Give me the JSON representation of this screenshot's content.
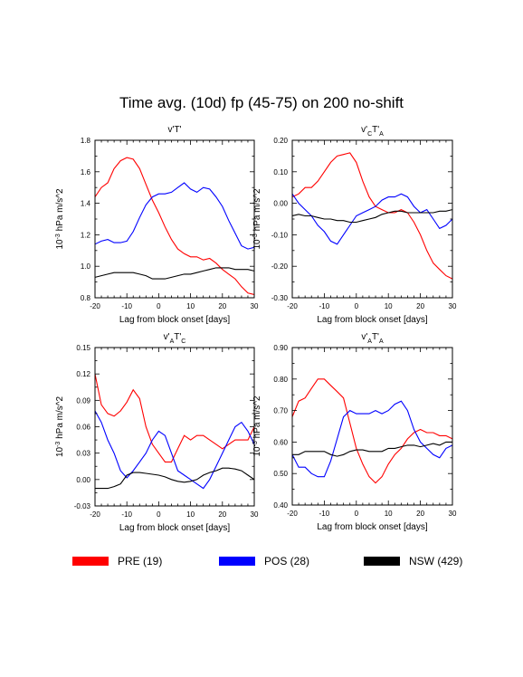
{
  "page": {
    "title": "Time avg. (10d) fp (45-75) on 200 no-shift"
  },
  "colors": {
    "PRE": "#ff0000",
    "POS": "#0000ff",
    "NSW": "#000000"
  },
  "legend": [
    {
      "key": "PRE",
      "label": "PRE (19)"
    },
    {
      "key": "POS",
      "label": "POS (28)"
    },
    {
      "key": "NSW",
      "label": "NSW (429)"
    }
  ],
  "chart_data": [
    {
      "type": "line",
      "title": "v'T'",
      "xlabel": "Lag from block onset [days]",
      "ylabel": "10^-3 hPa m/s^2",
      "xlim": [
        -20,
        30
      ],
      "ylim": [
        0.8,
        1.8
      ],
      "xticks": [
        -20,
        -10,
        0,
        10,
        20,
        30
      ],
      "yticks": [
        0.8,
        1.0,
        1.2,
        1.4,
        1.6,
        1.8
      ],
      "ytick_labels": [
        "0.8",
        "1.0",
        "1.2",
        "1.4",
        "1.6",
        "1.8"
      ],
      "x": [
        -20,
        -18,
        -16,
        -14,
        -12,
        -10,
        -8,
        -6,
        -4,
        -2,
        0,
        2,
        4,
        6,
        8,
        10,
        12,
        14,
        16,
        18,
        20,
        22,
        24,
        26,
        28,
        30
      ],
      "series": [
        {
          "name": "PRE",
          "values": [
            1.44,
            1.5,
            1.53,
            1.62,
            1.67,
            1.69,
            1.68,
            1.62,
            1.52,
            1.42,
            1.34,
            1.25,
            1.17,
            1.11,
            1.08,
            1.06,
            1.06,
            1.04,
            1.05,
            1.02,
            0.98,
            0.95,
            0.92,
            0.87,
            0.83,
            0.82
          ]
        },
        {
          "name": "POS",
          "values": [
            1.14,
            1.16,
            1.17,
            1.15,
            1.15,
            1.16,
            1.22,
            1.31,
            1.39,
            1.44,
            1.46,
            1.46,
            1.47,
            1.5,
            1.53,
            1.49,
            1.47,
            1.5,
            1.49,
            1.44,
            1.38,
            1.29,
            1.21,
            1.13,
            1.11,
            1.12
          ]
        },
        {
          "name": "NSW",
          "values": [
            0.93,
            0.94,
            0.95,
            0.96,
            0.96,
            0.96,
            0.96,
            0.95,
            0.94,
            0.92,
            0.92,
            0.92,
            0.93,
            0.94,
            0.95,
            0.95,
            0.96,
            0.97,
            0.98,
            0.99,
            0.99,
            0.99,
            0.98,
            0.98,
            0.98,
            0.97
          ]
        }
      ]
    },
    {
      "type": "line",
      "title": "v'_C T'_A",
      "xlabel": "Lag from block onset [days]",
      "ylabel": "10^-3 hPa m/s^2",
      "xlim": [
        -20,
        30
      ],
      "ylim": [
        -0.3,
        0.2
      ],
      "xticks": [
        -20,
        -10,
        0,
        10,
        20,
        30
      ],
      "yticks": [
        -0.3,
        -0.2,
        -0.1,
        0.0,
        0.1,
        0.2
      ],
      "ytick_labels": [
        "-0.30",
        "-0.20",
        "-0.10",
        "0.00",
        "0.10",
        "0.20"
      ],
      "x": [
        -20,
        -18,
        -16,
        -14,
        -12,
        -10,
        -8,
        -6,
        -4,
        -2,
        0,
        2,
        4,
        6,
        8,
        10,
        12,
        14,
        16,
        18,
        20,
        22,
        24,
        26,
        28,
        30
      ],
      "series": [
        {
          "name": "PRE",
          "values": [
            0.02,
            0.03,
            0.05,
            0.05,
            0.07,
            0.1,
            0.13,
            0.15,
            0.155,
            0.16,
            0.13,
            0.07,
            0.02,
            -0.01,
            -0.02,
            -0.03,
            -0.03,
            -0.02,
            -0.03,
            -0.06,
            -0.1,
            -0.15,
            -0.19,
            -0.21,
            -0.23,
            -0.24
          ]
        },
        {
          "name": "POS",
          "values": [
            0.03,
            0.0,
            -0.02,
            -0.04,
            -0.07,
            -0.09,
            -0.12,
            -0.13,
            -0.1,
            -0.07,
            -0.04,
            -0.03,
            -0.02,
            -0.01,
            0.01,
            0.02,
            0.02,
            0.03,
            0.02,
            -0.01,
            -0.03,
            -0.02,
            -0.05,
            -0.08,
            -0.07,
            -0.05
          ]
        },
        {
          "name": "NSW",
          "values": [
            -0.04,
            -0.035,
            -0.04,
            -0.04,
            -0.045,
            -0.05,
            -0.05,
            -0.055,
            -0.055,
            -0.06,
            -0.06,
            -0.055,
            -0.05,
            -0.045,
            -0.035,
            -0.03,
            -0.025,
            -0.025,
            -0.03,
            -0.03,
            -0.03,
            -0.03,
            -0.03,
            -0.025,
            -0.025,
            -0.02
          ]
        }
      ]
    },
    {
      "type": "line",
      "title": "v'_A T'_C",
      "xlabel": "Lag from block onset [days]",
      "ylabel": "10^-3 hPa m/s^2",
      "xlim": [
        -20,
        30
      ],
      "ylim": [
        -0.03,
        0.15
      ],
      "xticks": [
        -20,
        -10,
        0,
        10,
        20,
        30
      ],
      "yticks": [
        -0.03,
        0.0,
        0.03,
        0.06,
        0.09,
        0.12,
        0.15
      ],
      "ytick_labels": [
        "-0.03",
        "0.00",
        "0.03",
        "0.06",
        "0.09",
        "0.12",
        "0.15"
      ],
      "x": [
        -20,
        -18,
        -16,
        -14,
        -12,
        -10,
        -8,
        -6,
        -4,
        -2,
        0,
        2,
        4,
        6,
        8,
        10,
        12,
        14,
        16,
        18,
        20,
        22,
        24,
        26,
        28,
        30
      ],
      "series": [
        {
          "name": "PRE",
          "values": [
            0.12,
            0.085,
            0.075,
            0.072,
            0.078,
            0.088,
            0.102,
            0.092,
            0.06,
            0.04,
            0.03,
            0.02,
            0.02,
            0.035,
            0.05,
            0.045,
            0.05,
            0.05,
            0.045,
            0.04,
            0.035,
            0.04,
            0.045,
            0.045,
            0.045,
            0.06
          ]
        },
        {
          "name": "POS",
          "values": [
            0.078,
            0.065,
            0.045,
            0.03,
            0.01,
            0.002,
            0.01,
            0.02,
            0.03,
            0.045,
            0.055,
            0.05,
            0.03,
            0.01,
            0.005,
            0.0,
            -0.005,
            -0.01,
            0.0,
            0.015,
            0.03,
            0.045,
            0.06,
            0.065,
            0.055,
            0.04
          ]
        },
        {
          "name": "NSW",
          "values": [
            -0.01,
            -0.01,
            -0.01,
            -0.008,
            -0.005,
            0.005,
            0.008,
            0.008,
            0.007,
            0.006,
            0.005,
            0.003,
            0.0,
            -0.002,
            -0.003,
            -0.002,
            0.0,
            0.005,
            0.008,
            0.01,
            0.013,
            0.013,
            0.012,
            0.01,
            0.005,
            0.0
          ]
        }
      ]
    },
    {
      "type": "line",
      "title": "v'_A T'_A",
      "xlabel": "Lag from block onset [days]",
      "ylabel": "10^-3 hPa m/s^2",
      "xlim": [
        -20,
        30
      ],
      "ylim": [
        0.4,
        0.9
      ],
      "xticks": [
        -20,
        -10,
        0,
        10,
        20,
        30
      ],
      "yticks": [
        0.4,
        0.5,
        0.6,
        0.7,
        0.8,
        0.9
      ],
      "ytick_labels": [
        "0.40",
        "0.50",
        "0.60",
        "0.70",
        "0.80",
        "0.90"
      ],
      "x": [
        -20,
        -18,
        -16,
        -14,
        -12,
        -10,
        -8,
        -6,
        -4,
        -2,
        0,
        2,
        4,
        6,
        8,
        10,
        12,
        14,
        16,
        18,
        20,
        22,
        24,
        26,
        28,
        30
      ],
      "series": [
        {
          "name": "PRE",
          "values": [
            0.68,
            0.73,
            0.74,
            0.77,
            0.8,
            0.8,
            0.78,
            0.76,
            0.74,
            0.66,
            0.58,
            0.53,
            0.49,
            0.47,
            0.49,
            0.53,
            0.56,
            0.58,
            0.61,
            0.63,
            0.64,
            0.63,
            0.63,
            0.62,
            0.62,
            0.61
          ]
        },
        {
          "name": "POS",
          "values": [
            0.56,
            0.52,
            0.52,
            0.5,
            0.49,
            0.49,
            0.54,
            0.61,
            0.68,
            0.7,
            0.69,
            0.69,
            0.69,
            0.7,
            0.69,
            0.7,
            0.72,
            0.73,
            0.7,
            0.64,
            0.6,
            0.58,
            0.56,
            0.55,
            0.58,
            0.59
          ]
        },
        {
          "name": "NSW",
          "values": [
            0.56,
            0.56,
            0.57,
            0.57,
            0.57,
            0.57,
            0.56,
            0.555,
            0.56,
            0.57,
            0.575,
            0.575,
            0.57,
            0.57,
            0.57,
            0.58,
            0.58,
            0.585,
            0.59,
            0.59,
            0.585,
            0.59,
            0.595,
            0.59,
            0.6,
            0.6
          ]
        }
      ]
    }
  ]
}
